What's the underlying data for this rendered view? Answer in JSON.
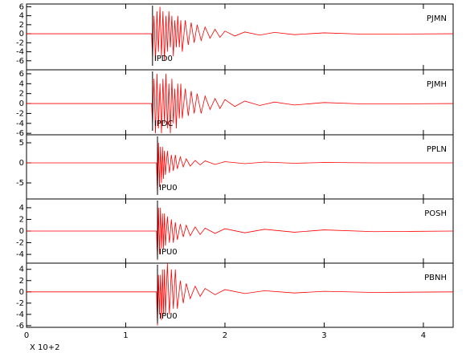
{
  "chart_data": [
    {
      "type": "line",
      "label": "PJMN",
      "color": "#ff0000",
      "x": [
        0,
        1.26,
        1.27,
        1.285,
        1.3,
        1.315,
        1.33,
        1.345,
        1.36,
        1.375,
        1.39,
        1.405,
        1.42,
        1.435,
        1.45,
        1.465,
        1.48,
        1.495,
        1.51,
        1.525,
        1.54,
        1.555,
        1.57,
        1.6,
        1.63,
        1.66,
        1.69,
        1.72,
        1.76,
        1.8,
        1.85,
        1.9,
        1.95,
        2.0,
        2.1,
        2.2,
        2.35,
        2.5,
        2.7,
        3.0,
        3.4,
        4.3
      ],
      "values": [
        0,
        0,
        -5,
        4,
        -6,
        5,
        -4,
        6,
        -5,
        5,
        -6,
        4,
        -4,
        5,
        -3,
        4,
        -5,
        3,
        -3,
        4,
        -3,
        3,
        -4,
        3,
        -2.5,
        2.5,
        -2,
        2,
        -1.5,
        1.5,
        -1,
        1,
        -0.8,
        0.6,
        -0.5,
        0.4,
        -0.3,
        0.3,
        -0.2,
        0.2,
        -0.1,
        0
      ],
      "pick": {
        "x": 1.27,
        "text": "IPD0"
      },
      "xlim": [
        0,
        4.3
      ],
      "xticks": [
        0,
        1,
        2,
        3,
        4
      ],
      "ylim": [
        -8,
        6.6
      ],
      "yticks": [
        -6,
        -4,
        -2,
        0,
        2,
        4,
        6
      ]
    },
    {
      "type": "line",
      "label": "PJMH",
      "color": "#ff0000",
      "x": [
        0,
        1.26,
        1.27,
        1.285,
        1.3,
        1.315,
        1.33,
        1.345,
        1.36,
        1.375,
        1.39,
        1.405,
        1.42,
        1.435,
        1.45,
        1.465,
        1.48,
        1.495,
        1.51,
        1.525,
        1.54,
        1.555,
        1.57,
        1.6,
        1.63,
        1.66,
        1.69,
        1.72,
        1.76,
        1.8,
        1.85,
        1.9,
        1.95,
        2.0,
        2.1,
        2.2,
        2.35,
        2.5,
        2.7,
        3.0,
        3.4,
        4.3
      ],
      "values": [
        0,
        0,
        -4,
        5,
        -6,
        6,
        -5,
        4,
        -6,
        5,
        -4,
        6,
        -5,
        4,
        -6,
        5,
        -4,
        3,
        -5,
        4,
        -3,
        4,
        -3,
        3,
        -2.5,
        2.5,
        -2,
        2,
        -2,
        1.5,
        -1.2,
        1,
        -1,
        0.8,
        -0.6,
        0.5,
        -0.4,
        0.3,
        -0.3,
        0.2,
        -0.1,
        0
      ],
      "pick": {
        "x": 1.27,
        "text": "IPDC"
      },
      "xlim": [
        0,
        4.3
      ],
      "xticks": [
        0,
        1,
        2,
        3,
        4
      ],
      "ylim": [
        -6.3,
        6.8
      ],
      "yticks": [
        -6,
        -4,
        -2,
        0,
        2,
        4,
        6
      ]
    },
    {
      "type": "line",
      "label": "PPLN",
      "color": "#ff0000",
      "x": [
        0,
        1.31,
        1.32,
        1.33,
        1.34,
        1.35,
        1.36,
        1.37,
        1.38,
        1.39,
        1.4,
        1.42,
        1.44,
        1.46,
        1.48,
        1.5,
        1.52,
        1.55,
        1.58,
        1.61,
        1.65,
        1.7,
        1.75,
        1.8,
        1.9,
        2.0,
        2.2,
        2.4,
        2.7,
        3.0,
        3.5,
        4.3
      ],
      "values": [
        0,
        0,
        -8,
        5,
        -6,
        4,
        -5,
        4,
        -4,
        3,
        -3,
        3,
        -2.5,
        2,
        -2,
        2,
        -1.5,
        1.5,
        -1,
        1,
        -0.8,
        0.6,
        -0.5,
        0.5,
        -0.4,
        0.3,
        -0.2,
        0.2,
        -0.1,
        0.1,
        0,
        0
      ],
      "pick": {
        "x": 1.32,
        "text": "IPU0"
      },
      "xlim": [
        0,
        4.3
      ],
      "xticks": [
        0,
        1,
        2,
        3,
        4
      ],
      "ylim": [
        -9,
        7
      ],
      "yticks": [
        -5,
        0,
        5
      ]
    },
    {
      "type": "line",
      "label": "POSH",
      "color": "#ff0000",
      "x": [
        0,
        1.31,
        1.32,
        1.33,
        1.34,
        1.35,
        1.36,
        1.37,
        1.38,
        1.39,
        1.4,
        1.42,
        1.44,
        1.46,
        1.48,
        1.5,
        1.52,
        1.55,
        1.58,
        1.61,
        1.65,
        1.7,
        1.75,
        1.8,
        1.9,
        2.0,
        2.2,
        2.4,
        2.7,
        3.0,
        3.5,
        4.3
      ],
      "values": [
        0,
        0,
        -5,
        4,
        -4,
        4,
        -3,
        3,
        -3,
        3,
        -2.5,
        2.5,
        -2,
        2,
        -2,
        1.5,
        -1.5,
        1.2,
        -1,
        1,
        -0.8,
        0.7,
        -0.6,
        0.5,
        -0.4,
        0.4,
        -0.3,
        0.3,
        -0.2,
        0.2,
        -0.1,
        0
      ],
      "pick": {
        "x": 1.32,
        "text": "IPU0"
      },
      "xlim": [
        0,
        4.3
      ],
      "xticks": [
        0,
        1,
        2,
        3,
        4
      ],
      "ylim": [
        -5.5,
        5.5
      ],
      "yticks": [
        -4,
        -2,
        0,
        2,
        4
      ]
    },
    {
      "type": "line",
      "label": "PBNH",
      "color": "#ff0000",
      "x": [
        0,
        1.31,
        1.32,
        1.33,
        1.34,
        1.35,
        1.36,
        1.37,
        1.38,
        1.39,
        1.4,
        1.42,
        1.44,
        1.46,
        1.48,
        1.5,
        1.52,
        1.55,
        1.58,
        1.61,
        1.65,
        1.7,
        1.75,
        1.8,
        1.9,
        2.0,
        2.2,
        2.4,
        2.7,
        3.0,
        3.5,
        4.3
      ],
      "values": [
        0,
        0,
        -6,
        3,
        -4,
        3,
        -5,
        4,
        -4,
        4,
        -4,
        5,
        -4,
        4,
        -3,
        4,
        -3,
        2,
        -2,
        1.5,
        -1.2,
        1,
        -0.8,
        0.6,
        -0.5,
        0.4,
        -0.3,
        0.2,
        -0.2,
        0.1,
        -0.1,
        0
      ],
      "pick": {
        "x": 1.32,
        "text": "IPU0"
      },
      "xlim": [
        0,
        4.3
      ],
      "xticks": [
        0,
        1,
        2,
        3,
        4
      ],
      "xlabel": "X 10+2",
      "ylim": [
        -6.3,
        5.1
      ],
      "yticks": [
        -6,
        -4,
        -2,
        0,
        2,
        4
      ]
    }
  ]
}
